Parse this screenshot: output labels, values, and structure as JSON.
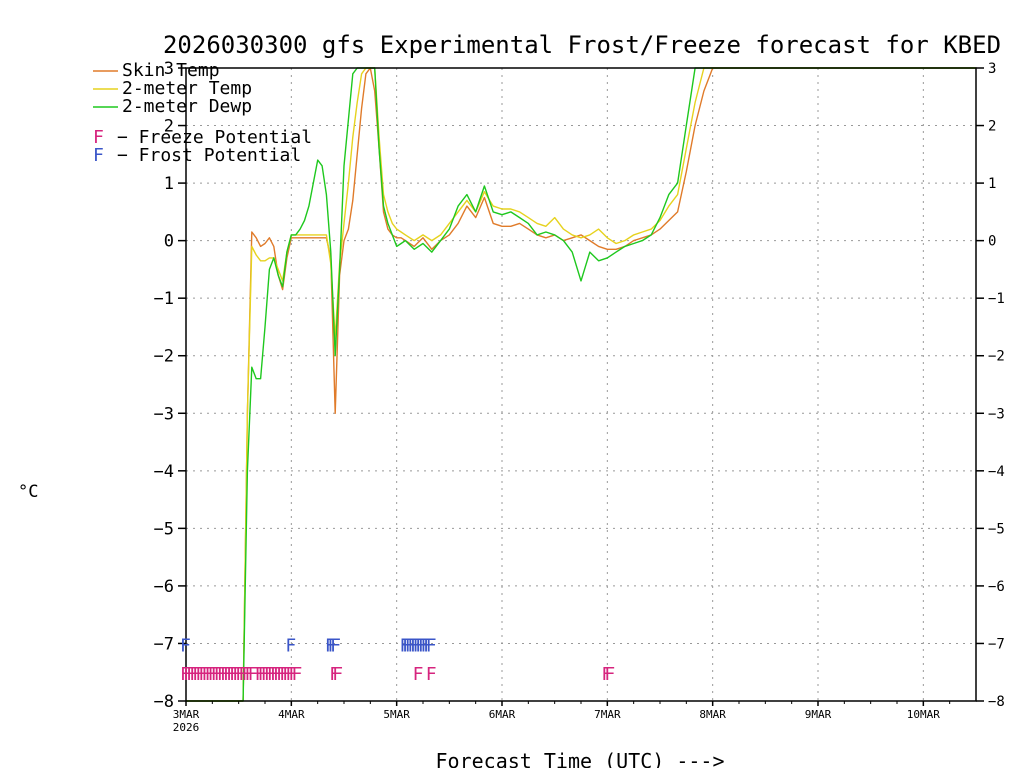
{
  "chart_data": {
    "type": "line",
    "title": "2026030300 gfs Experimental Frost/Freeze forecast for KBED",
    "xlabel": "Forecast Time (UTC) --->",
    "ylabel": "°C",
    "ylim": [
      -8,
      3
    ],
    "yticks": [
      -8,
      -7,
      -6,
      -5,
      -4,
      -3,
      -2,
      -1,
      0,
      1,
      2,
      3
    ],
    "ytick_labels": [
      "−8",
      "−7",
      "−6",
      "−5",
      "−4",
      "−3",
      "−2",
      "−1",
      "0",
      "1",
      "2",
      "3"
    ],
    "xlim_hours": [
      0,
      180
    ],
    "xticks": [
      {
        "hour": 0,
        "label": "3MAR",
        "sub": "2026"
      },
      {
        "hour": 24,
        "label": "4MAR"
      },
      {
        "hour": 48,
        "label": "5MAR"
      },
      {
        "hour": 72,
        "label": "6MAR"
      },
      {
        "hour": 96,
        "label": "7MAR"
      },
      {
        "hour": 120,
        "label": "8MAR"
      },
      {
        "hour": 144,
        "label": "9MAR"
      },
      {
        "hour": 168,
        "label": "10MAR"
      }
    ],
    "grid": true,
    "series": [
      {
        "name": "Skin Temp",
        "color": "#e07b2a",
        "x": [
          0,
          13,
          14,
          15,
          16,
          17,
          18,
          19,
          20,
          21,
          22,
          23,
          24,
          25,
          26,
          27,
          28,
          29,
          30,
          31,
          32,
          33,
          34,
          35,
          36,
          37,
          38,
          39,
          40,
          41,
          42,
          43,
          44,
          45,
          46,
          47,
          48,
          49,
          50,
          52,
          54,
          56,
          58,
          60,
          62,
          64,
          66,
          68,
          70,
          72,
          74,
          76,
          78,
          80,
          82,
          84,
          86,
          88,
          90,
          92,
          94,
          96,
          98,
          100,
          102,
          104,
          106,
          108,
          110,
          112,
          114,
          116,
          118,
          120,
          180
        ],
        "y": [
          -8,
          -8,
          -3,
          0.15,
          0.05,
          -0.1,
          -0.05,
          0.05,
          -0.1,
          -0.6,
          -0.85,
          -0.3,
          0.05,
          0.05,
          0.05,
          0.05,
          0.05,
          0.05,
          0.05,
          0.05,
          0.05,
          -0.3,
          -3.0,
          -0.6,
          0,
          0.2,
          0.7,
          1.5,
          2.3,
          2.9,
          3,
          2.6,
          1.6,
          0.5,
          0.2,
          0.1,
          0.05,
          0.05,
          0.0,
          -0.1,
          0.05,
          -0.15,
          0.0,
          0.1,
          0.3,
          0.6,
          0.4,
          0.75,
          0.3,
          0.25,
          0.25,
          0.3,
          0.2,
          0.1,
          0.05,
          0.1,
          0.0,
          0.05,
          0.1,
          0.0,
          -0.1,
          -0.15,
          -0.15,
          -0.1,
          0.0,
          0.05,
          0.1,
          0.2,
          0.35,
          0.5,
          1.2,
          2.0,
          2.6,
          3,
          3
        ]
      },
      {
        "name": "2-meter Temp",
        "color": "#e6d21e",
        "x": [
          0,
          13,
          14,
          15,
          16,
          17,
          18,
          19,
          20,
          21,
          22,
          23,
          24,
          25,
          26,
          27,
          28,
          29,
          30,
          31,
          32,
          33,
          34,
          35,
          36,
          37,
          38,
          39,
          40,
          41,
          42,
          43,
          44,
          45,
          46,
          47,
          48,
          49,
          50,
          52,
          54,
          56,
          58,
          60,
          62,
          64,
          66,
          68,
          70,
          72,
          74,
          76,
          78,
          80,
          82,
          84,
          86,
          88,
          90,
          92,
          94,
          96,
          98,
          100,
          102,
          104,
          106,
          108,
          110,
          112,
          114,
          116,
          118,
          120,
          180
        ],
        "y": [
          -8,
          -8,
          -3,
          -0.1,
          -0.25,
          -0.35,
          -0.35,
          -0.3,
          -0.3,
          -0.5,
          -0.7,
          -0.2,
          0.1,
          0.1,
          0.1,
          0.1,
          0.1,
          0.1,
          0.1,
          0.1,
          0.1,
          -0.4,
          -1.7,
          -0.4,
          0.3,
          1.0,
          1.8,
          2.4,
          2.9,
          3,
          3,
          3,
          1.8,
          0.8,
          0.5,
          0.3,
          0.2,
          0.15,
          0.1,
          0.0,
          0.1,
          0.0,
          0.1,
          0.3,
          0.5,
          0.7,
          0.5,
          0.85,
          0.6,
          0.55,
          0.55,
          0.5,
          0.4,
          0.3,
          0.25,
          0.4,
          0.2,
          0.1,
          0.05,
          0.1,
          0.2,
          0.05,
          -0.05,
          0.0,
          0.1,
          0.15,
          0.2,
          0.35,
          0.6,
          0.8,
          1.6,
          2.4,
          3,
          3,
          3
        ]
      },
      {
        "name": "2-meter Dewp",
        "color": "#1ec81e",
        "x": [
          0,
          13,
          14,
          15,
          16,
          17,
          18,
          19,
          20,
          21,
          22,
          23,
          24,
          25,
          26,
          27,
          28,
          29,
          30,
          31,
          32,
          33,
          34,
          35,
          36,
          37,
          38,
          39,
          40,
          41,
          42,
          43,
          44,
          45,
          46,
          47,
          48,
          49,
          50,
          52,
          54,
          56,
          58,
          60,
          62,
          64,
          66,
          68,
          70,
          72,
          74,
          76,
          78,
          80,
          82,
          84,
          86,
          88,
          90,
          92,
          94,
          96,
          98,
          100,
          102,
          104,
          106,
          108,
          110,
          112,
          114,
          116,
          118,
          120,
          180
        ],
        "y": [
          -8,
          -8,
          -4,
          -2.2,
          -2.4,
          -2.4,
          -1.5,
          -0.5,
          -0.3,
          -0.6,
          -0.8,
          -0.2,
          0.1,
          0.1,
          0.2,
          0.35,
          0.6,
          1.0,
          1.4,
          1.3,
          0.8,
          -0.2,
          -2.0,
          -0.5,
          1.3,
          2.1,
          2.9,
          3,
          3,
          3,
          3,
          3,
          1.6,
          0.6,
          0.3,
          0.1,
          -0.1,
          -0.05,
          0.0,
          -0.15,
          -0.05,
          -0.2,
          0.0,
          0.2,
          0.6,
          0.8,
          0.5,
          0.95,
          0.5,
          0.45,
          0.5,
          0.4,
          0.3,
          0.1,
          0.15,
          0.1,
          0.0,
          -0.2,
          -0.7,
          -0.2,
          -0.35,
          -0.3,
          -0.2,
          -0.1,
          -0.05,
          0.0,
          0.1,
          0.4,
          0.8,
          1.0,
          2.0,
          3,
          3,
          3,
          3
        ]
      }
    ],
    "legend": [
      {
        "label": "Skin Temp",
        "color": "#e07b2a"
      },
      {
        "label": "2-meter Temp",
        "color": "#e6d21e"
      },
      {
        "label": "2-meter Dewp",
        "color": "#1ec81e"
      }
    ],
    "flag_legend": [
      {
        "mark": "F",
        "label": "− Freeze Potential",
        "color": "#d6247e"
      },
      {
        "mark": "F",
        "label": "− Frost Potential",
        "color": "#3a55c8"
      }
    ],
    "frost_flags_hours": [
      0,
      24,
      33,
      33.6,
      34.2,
      50,
      50.6,
      51.2,
      51.8,
      52.4,
      53,
      53.6,
      54.2,
      54.8,
      55.4,
      56
    ],
    "freeze_flags_hours": [
      0,
      0.7,
      1.4,
      2.1,
      2.8,
      3.5,
      4.2,
      4.9,
      5.6,
      6.3,
      7,
      7.7,
      8.4,
      9.1,
      9.8,
      10.5,
      11.2,
      11.9,
      12.6,
      13.3,
      14,
      14.7,
      15.4,
      17,
      17.7,
      18.4,
      19.1,
      19.8,
      20.5,
      21.2,
      21.9,
      22.6,
      23.3,
      24,
      24.7,
      25.4,
      34,
      34.7,
      53,
      56,
      96,
      96.7
    ]
  }
}
